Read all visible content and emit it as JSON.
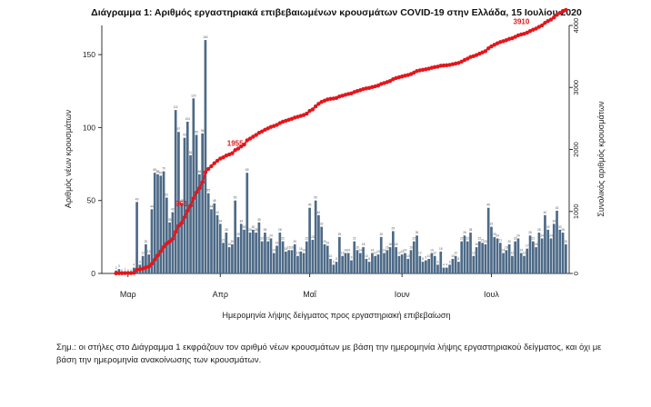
{
  "chart_data": {
    "type": "bar+line",
    "title": "Διάγραμμα 1: Αριθμός εργαστηριακά επιβεβαιωμένων κρουσμάτων COVID-19 στην Ελλάδα, 15 Ιουλίου 2020",
    "xlabel": "Ημερομηνία λήψης δείγματος προς εργαστηριακή επιβεβαίωση",
    "ylabel": "Αριθμός νέων κρουσμάτων",
    "y2label": "Συνολικός αριθμός κρουσμάτων",
    "ylim": [
      0,
      170
    ],
    "y2lim": [
      0,
      4000
    ],
    "yticks": [
      0,
      50,
      100,
      150
    ],
    "y2ticks": [
      0,
      1000,
      2000,
      3000,
      4000
    ],
    "xtick_labels": [
      "Μαρ",
      "Απρ",
      "Μαΐ",
      "Ιουν",
      "Ιουλ"
    ],
    "xtick_days": [
      0,
      31,
      61,
      92,
      122
    ],
    "start_day": -4,
    "bars": [
      2,
      3,
      0,
      1,
      0,
      0,
      4,
      49,
      6,
      12,
      20,
      13,
      44,
      69,
      68,
      67,
      70,
      52,
      35,
      42,
      112,
      97,
      48,
      93,
      104,
      81,
      120,
      95,
      68,
      96,
      160,
      55,
      44,
      48,
      40,
      34,
      21,
      28,
      18,
      20,
      50,
      25,
      34,
      30,
      69,
      28,
      30,
      28,
      35,
      22,
      28,
      22,
      24,
      14,
      19,
      28,
      22,
      15,
      16,
      16,
      20,
      12,
      15,
      14,
      22,
      45,
      23,
      50,
      40,
      32,
      20,
      19,
      10,
      6,
      8,
      25,
      12,
      14,
      14,
      9,
      22,
      16,
      14,
      18,
      10,
      8,
      14,
      12,
      13,
      25,
      14,
      16,
      18,
      29,
      18,
      12,
      13,
      14,
      10,
      16,
      22,
      26,
      12,
      8,
      9,
      10,
      14,
      12,
      6,
      15,
      4,
      4,
      6,
      10,
      12,
      8,
      22,
      26,
      22,
      28,
      12,
      18,
      22,
      21,
      20,
      45,
      32,
      25,
      24,
      21,
      14,
      16,
      20,
      12,
      22,
      24,
      14,
      12,
      17,
      26,
      22,
      18,
      28,
      24,
      40,
      30,
      24,
      34,
      43,
      30,
      28,
      20
    ],
    "cumulative_label_values": [
      "3910",
      "1955",
      "961"
    ],
    "notable_values": {
      "final_total": 3910,
      "mid_total": 1955,
      "early_total": 961
    }
  },
  "footnote_line1": "Σημ.: οι στήλες στο Διάγραμμα 1 εκφράζουν τον αριθμό νέων κρουσμάτων με βάση την ημερομηνία λήψης εργαστηριακού δείγματος, και όχι με",
  "footnote_line2": "βάση την ημερομηνία ανακοίνωσης των κρουσμάτων.",
  "colors": {
    "bar": "#4d6a87",
    "line": "#e3161b",
    "axis": "#333333"
  }
}
